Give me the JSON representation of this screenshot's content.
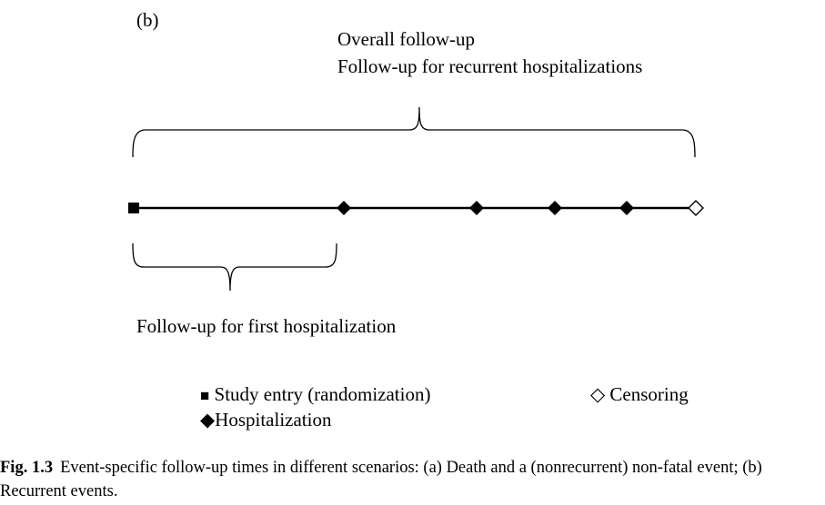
{
  "panel_label": "(b)",
  "brackets": {
    "overall": "Overall follow-up",
    "recurrent": "Follow-up for recurrent hospitalizations",
    "first": "Follow-up for first hospitalization"
  },
  "timeline_events": [
    {
      "type": "study_entry",
      "symbol": "filled-square"
    },
    {
      "type": "hospitalization",
      "symbol": "filled-diamond"
    },
    {
      "type": "hospitalization",
      "symbol": "filled-diamond"
    },
    {
      "type": "hospitalization",
      "symbol": "filled-diamond"
    },
    {
      "type": "hospitalization",
      "symbol": "filled-diamond"
    },
    {
      "type": "censoring",
      "symbol": "open-diamond"
    }
  ],
  "legend": {
    "study_entry": {
      "symbol": "■",
      "label": "Study entry (randomization)"
    },
    "censoring": {
      "symbol": "◇",
      "label": "Censoring"
    },
    "hospitalization": {
      "symbol": "◆",
      "label": "Hospitalization"
    }
  },
  "caption": {
    "label": "Fig. 1.3",
    "text": "Event-specific follow-up times in different scenarios: (a) Death and a (nonrecurrent) non-fatal event; (b) Recurrent events."
  },
  "colors": {
    "ink": "#000000",
    "background": "#ffffff"
  }
}
